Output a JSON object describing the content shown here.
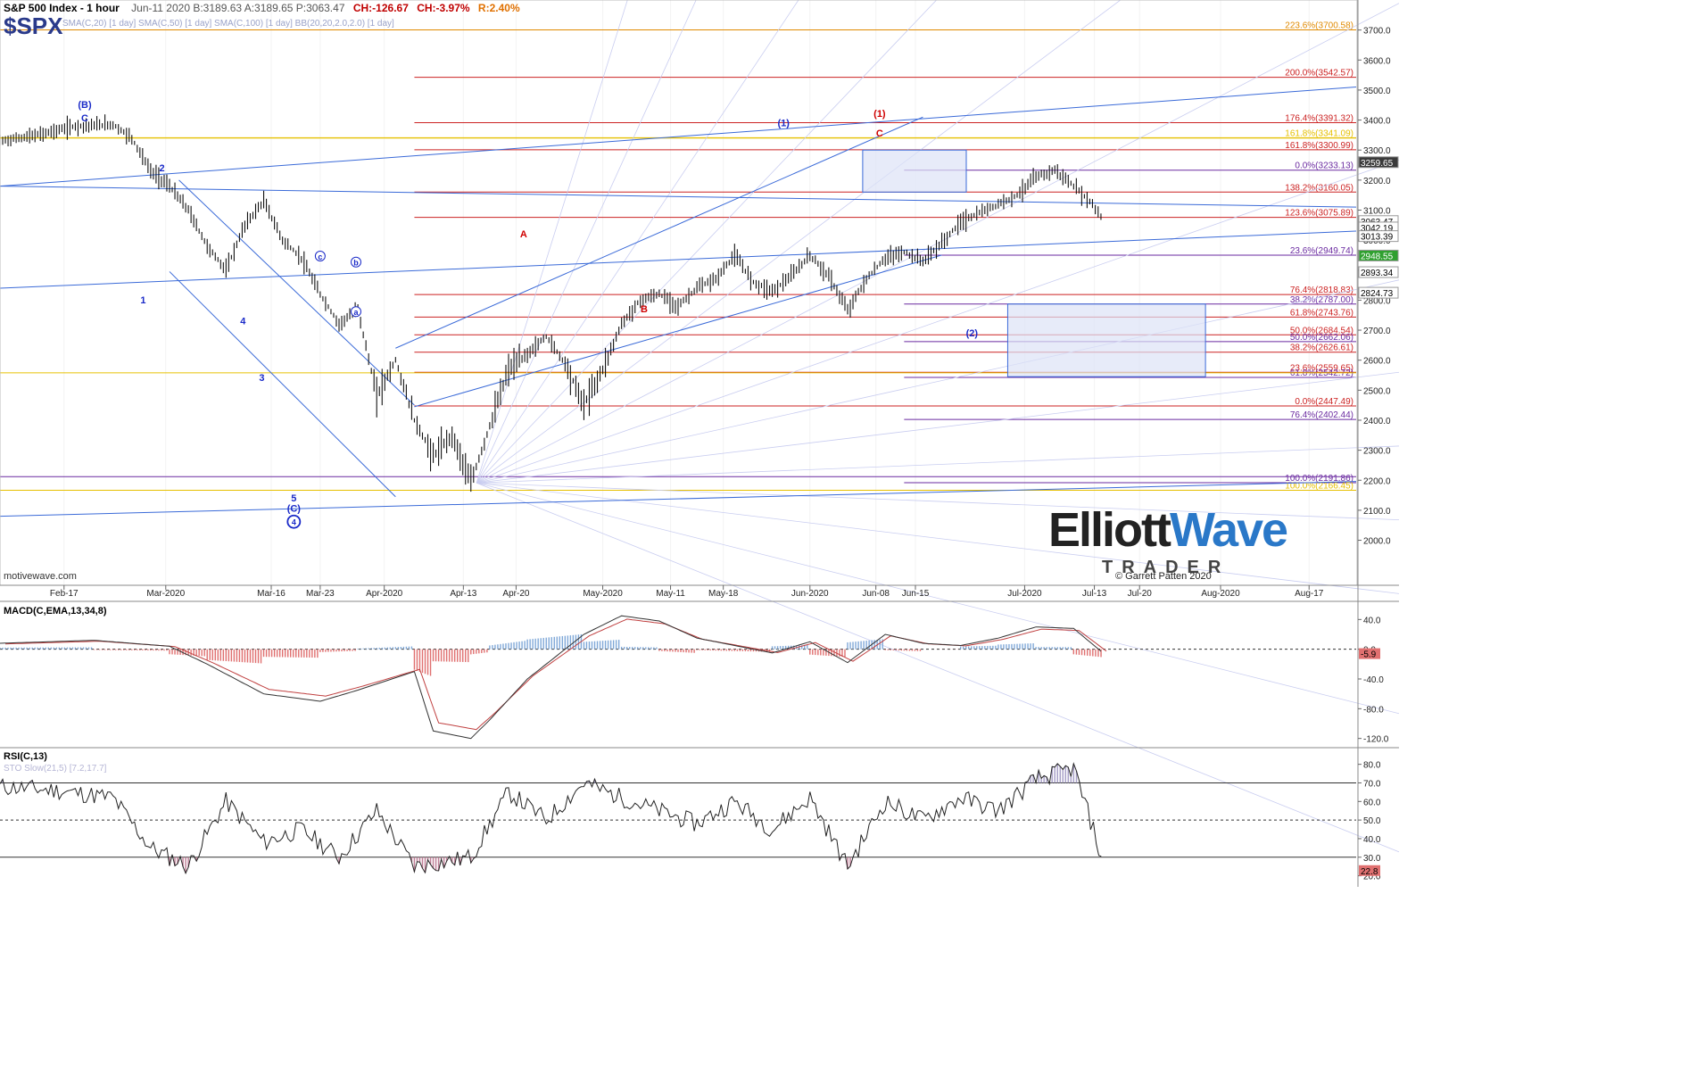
{
  "header": {
    "title": "S&P 500 Index - 1 hour",
    "meta": "Jun-11 2020  B:3189.63  A:3189.65  P:3063.47",
    "change_pts": "CH:-126.67",
    "change_pct": "CH:-3.97%",
    "range": "R:2.40%",
    "symbol": "$SPX",
    "overlays": "SMA(C,20) [1 day]  SMA(C,50) [1 day]  SMA(C,100) [1 day]  BB(20,20,2.0,2.0) [1 day]"
  },
  "source": "motivewave.com",
  "brand": {
    "word1": "Elliott",
    "word2": "Wave",
    "word3": "TRADER",
    "copyright": "© Garrett Patten 2020"
  },
  "colors": {
    "red_fib": "#cc2222",
    "purple_fib": "#6a2aa0",
    "orange_fib": "#e6a000",
    "wave_blue": "#1a2ac8",
    "wave_red": "#d00000",
    "channel": "#3a6ad8",
    "box": "#dde3f6"
  },
  "panels": {
    "macd_label": "MACD(C,EMA,13,34,8)",
    "rsi_label": "RSI(C,13)",
    "rsi_legend": "STO Slow(21,5) [7.2,17.7]"
  },
  "chart_data": [
    {
      "type": "candlestick",
      "title": "S&P 500 Index - 1 hour",
      "ylim": [
        1850,
        3800
      ],
      "y_ticks": [
        2000,
        2100,
        2200,
        2300,
        2400,
        2500,
        2600,
        2700,
        2800,
        2900,
        3000,
        3100,
        3200,
        3300,
        3400,
        3500,
        3600,
        3700
      ],
      "x_ticks": [
        "Feb-17",
        "Mar-2020",
        "Mar-16",
        "Mar-23",
        "Apr-2020",
        "Apr-13",
        "Apr-20",
        "May-2020",
        "May-11",
        "May-18",
        "Jun-2020",
        "Jun-08",
        "Jun-15",
        "Jul-2020",
        "Jul-13",
        "Jul-20",
        "Aug-2020",
        "Aug-17"
      ],
      "price_path": [
        [
          0,
          3330
        ],
        [
          2,
          3350
        ],
        [
          4,
          3380
        ],
        [
          6,
          3385
        ],
        [
          7,
          3340
        ],
        [
          8,
          3230
        ],
        [
          9,
          3180
        ],
        [
          10,
          3100
        ],
        [
          11,
          2980
        ],
        [
          12,
          2900
        ],
        [
          13,
          3050
        ],
        [
          14,
          3130
        ],
        [
          15,
          3000
        ],
        [
          16,
          2940
        ],
        [
          17,
          2820
        ],
        [
          18,
          2720
        ],
        [
          19,
          2770
        ],
        [
          20,
          2480
        ],
        [
          21,
          2600
        ],
        [
          22,
          2400
        ],
        [
          23,
          2280
        ],
        [
          24,
          2350
        ],
        [
          25,
          2191
        ],
        [
          26,
          2380
        ],
        [
          27,
          2570
        ],
        [
          28,
          2620
        ],
        [
          29,
          2680
        ],
        [
          30,
          2590
        ],
        [
          31,
          2450
        ],
        [
          32,
          2570
        ],
        [
          33,
          2720
        ],
        [
          34,
          2800
        ],
        [
          35,
          2820
        ],
        [
          36,
          2780
        ],
        [
          37,
          2840
        ],
        [
          38,
          2870
        ],
        [
          39,
          2950
        ],
        [
          40,
          2860
        ],
        [
          41,
          2830
        ],
        [
          42,
          2880
        ],
        [
          43,
          2950
        ],
        [
          44,
          2880
        ],
        [
          45,
          2766
        ],
        [
          46,
          2870
        ],
        [
          47,
          2940
        ],
        [
          48,
          2960
        ],
        [
          49,
          2930
        ],
        [
          50,
          2990
        ],
        [
          51,
          3060
        ],
        [
          52,
          3090
        ],
        [
          53,
          3120
        ],
        [
          54,
          3150
        ],
        [
          55,
          3210
        ],
        [
          56,
          3233
        ],
        [
          57,
          3180
        ],
        [
          58,
          3120
        ],
        [
          58.6,
          3063
        ]
      ],
      "last_price": 3063.47,
      "price_badges": [
        {
          "value": "3259.65",
          "y": 3259.65,
          "color": "#3a3a3a"
        },
        {
          "value": "3063.47",
          "y": 3063.47,
          "color": "#ffffff"
        },
        {
          "value": "3042.19",
          "y": 3042.19,
          "color": "#ffffff"
        },
        {
          "value": "3013.39",
          "y": 3013.39,
          "color": "#ffffff"
        },
        {
          "value": "2948.55",
          "y": 2948.55,
          "color": "#30a030"
        },
        {
          "value": "2893.34",
          "y": 2893.34,
          "color": "#ffffff"
        },
        {
          "value": "2824.73",
          "y": 2824.73,
          "color": "#ffffff"
        }
      ],
      "fib_levels": [
        {
          "label": "223.6%(3700.58)",
          "y": 3700.58,
          "color": "#e08a00"
        },
        {
          "label": "200.0%(3542.57)",
          "y": 3542.57,
          "color": "#cc2222"
        },
        {
          "label": "176.4%(3391.32)",
          "y": 3391.32,
          "color": "#cc2222"
        },
        {
          "label": "161.8%(3341.09)",
          "y": 3341.09,
          "color": "#e6c000"
        },
        {
          "label": "161.8%(3300.99)",
          "y": 3300.99,
          "color": "#cc2222"
        },
        {
          "label": "0.0%(3233.13)",
          "y": 3233.13,
          "color": "#6a2aa0"
        },
        {
          "label": "138.2%(3160.05)",
          "y": 3160.05,
          "color": "#cc2222"
        },
        {
          "label": "123.6%(3075.89)",
          "y": 3075.89,
          "color": "#cc2222"
        },
        {
          "label": "23.6%(2949.74)",
          "y": 2949.74,
          "color": "#6a2aa0"
        },
        {
          "label": "76.4%(2818.83)",
          "y": 2818.83,
          "color": "#cc2222"
        },
        {
          "label": "38.2%(2787.00)",
          "y": 2787.0,
          "color": "#6a2aa0"
        },
        {
          "label": "61.8%(2743.76)",
          "y": 2743.76,
          "color": "#cc2222"
        },
        {
          "label": "50.0%(2684.54)",
          "y": 2684.54,
          "color": "#cc2222"
        },
        {
          "label": "50.0%(2662.06)",
          "y": 2662.06,
          "color": "#6a2aa0"
        },
        {
          "label": "38.2%(2626.61)",
          "y": 2626.61,
          "color": "#cc2222"
        },
        {
          "label": "23.6%(2559.65)",
          "y": 2559.65,
          "color": "#cc2222"
        },
        {
          "label": "61.8%(2542.72)",
          "y": 2542.72,
          "color": "#6a2aa0"
        },
        {
          "label": "0.0%(2447.49)",
          "y": 2447.49,
          "color": "#cc2222"
        },
        {
          "label": "76.4%(2402.44)",
          "y": 2402.44,
          "color": "#6a2aa0"
        },
        {
          "label": "100.0%(2191.86)",
          "y": 2191.86,
          "color": "#6a2aa0"
        },
        {
          "label": "100.0%(2166.45)",
          "y": 2166.45,
          "color": "#e6c000"
        }
      ],
      "wave_labels": [
        {
          "text": "(B)",
          "color": "blue"
        },
        {
          "text": "C",
          "color": "blue"
        },
        {
          "text": "1",
          "color": "blue"
        },
        {
          "text": "2",
          "color": "blue"
        },
        {
          "text": "3",
          "color": "blue"
        },
        {
          "text": "4",
          "color": "blue"
        },
        {
          "text": "5",
          "color": "blue"
        },
        {
          "text": "(C)",
          "color": "blue"
        },
        {
          "text": "4",
          "color": "blue",
          "circled": true
        },
        {
          "text": "A",
          "color": "red"
        },
        {
          "text": "B",
          "color": "red"
        },
        {
          "text": "(1)",
          "color": "blue"
        },
        {
          "text": "(1)",
          "color": "red"
        },
        {
          "text": "C",
          "color": "red"
        },
        {
          "text": "(2)",
          "color": "blue"
        },
        {
          "text": "a",
          "color": "blue",
          "circled": true
        },
        {
          "text": "b",
          "color": "blue",
          "circled": true
        },
        {
          "text": "c",
          "color": "blue",
          "circled": true
        }
      ]
    },
    {
      "type": "line",
      "title": "MACD(C,EMA,13,34,8)",
      "y_ticks": [
        40.0,
        0,
        -40.0,
        -80.0,
        -120.0
      ],
      "ylim": [
        -130,
        62
      ],
      "current": -5.9,
      "macd_path": [
        [
          0,
          8
        ],
        [
          5,
          12
        ],
        [
          9,
          4
        ],
        [
          11,
          -20
        ],
        [
          14,
          -60
        ],
        [
          17,
          -70
        ],
        [
          19,
          -55
        ],
        [
          22,
          -30
        ],
        [
          23,
          -110
        ],
        [
          25,
          -120
        ],
        [
          26,
          -95
        ],
        [
          28,
          -40
        ],
        [
          31,
          20
        ],
        [
          33,
          45
        ],
        [
          35,
          38
        ],
        [
          37,
          15
        ],
        [
          39,
          5
        ],
        [
          41,
          -5
        ],
        [
          43,
          10
        ],
        [
          45,
          -18
        ],
        [
          47,
          20
        ],
        [
          49,
          8
        ],
        [
          51,
          5
        ],
        [
          53,
          15
        ],
        [
          55,
          30
        ],
        [
          57,
          28
        ],
        [
          58.6,
          -5.9
        ]
      ]
    },
    {
      "type": "line",
      "title": "RSI(C,13)",
      "y_ticks": [
        80.0,
        70.0,
        60.0,
        50.0,
        40.0,
        30.0,
        20.0
      ],
      "ylim": [
        15,
        88
      ],
      "levels": [
        70,
        50,
        30
      ],
      "current": 22.8,
      "second_value": 7.2,
      "rsi_path": [
        [
          0,
          68
        ],
        [
          3,
          66
        ],
        [
          6,
          62
        ],
        [
          8,
          35
        ],
        [
          10,
          25
        ],
        [
          12,
          60
        ],
        [
          14,
          38
        ],
        [
          16,
          45
        ],
        [
          18,
          30
        ],
        [
          20,
          55
        ],
        [
          22,
          25
        ],
        [
          24,
          28
        ],
        [
          25,
          30
        ],
        [
          27,
          65
        ],
        [
          29,
          50
        ],
        [
          31,
          70
        ],
        [
          33,
          62
        ],
        [
          35,
          55
        ],
        [
          37,
          48
        ],
        [
          39,
          60
        ],
        [
          41,
          45
        ],
        [
          43,
          62
        ],
        [
          45,
          25
        ],
        [
          47,
          60
        ],
        [
          49,
          50
        ],
        [
          51,
          62
        ],
        [
          53,
          55
        ],
        [
          55,
          72
        ],
        [
          57,
          78
        ],
        [
          58.2,
          40
        ],
        [
          58.6,
          22.8
        ]
      ]
    }
  ]
}
